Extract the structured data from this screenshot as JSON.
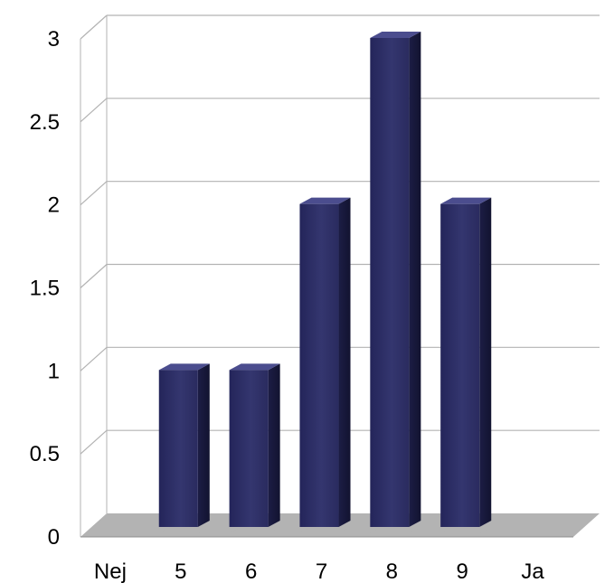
{
  "chart_data": {
    "type": "bar",
    "title": "",
    "xlabel": "",
    "ylabel": "",
    "categories": [
      "Nej",
      "5",
      "6",
      "7",
      "8",
      "9",
      "Ja"
    ],
    "values": [
      0,
      1,
      1,
      2,
      3,
      2,
      0
    ],
    "ylim": [
      0,
      3
    ],
    "yticks": [
      "0",
      "0.5",
      "1",
      "1.5",
      "2",
      "2.5",
      "3"
    ],
    "grid": true,
    "legend": "none",
    "colors": {
      "bar_front": "#2f3068",
      "bar_side": "#1a1b40",
      "bar_top": "#4b4d8e",
      "floor": "#b3b3b3",
      "floor_edge": "#8c8c8c",
      "grid": "#b3b3b3",
      "axis_text": "#000000"
    }
  }
}
